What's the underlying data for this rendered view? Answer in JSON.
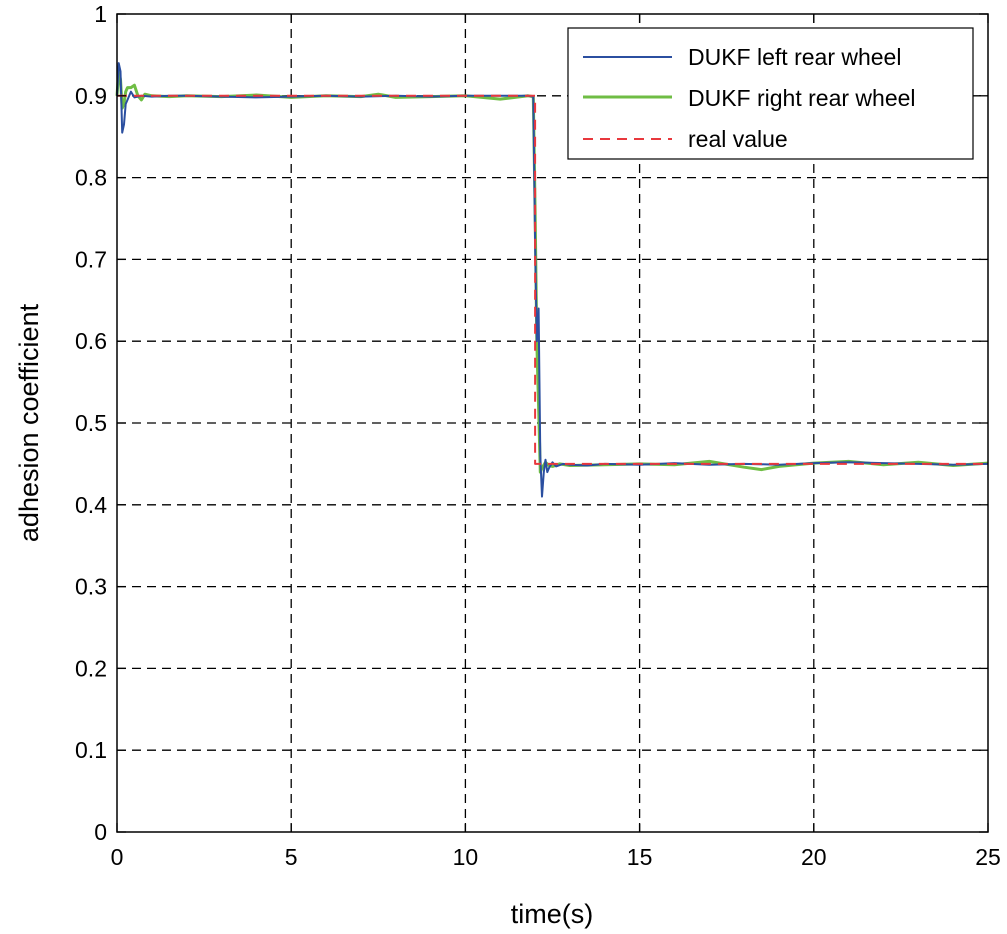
{
  "chart_data": {
    "type": "line",
    "title": "",
    "xlabel": "time(s)",
    "ylabel": "adhesion coefficient",
    "xlim": [
      0,
      25
    ],
    "ylim": [
      0,
      1
    ],
    "xticks": [
      0,
      5,
      10,
      15,
      20,
      25
    ],
    "yticks": [
      0,
      0.1,
      0.2,
      0.3,
      0.4,
      0.5,
      0.6,
      0.7,
      0.8,
      0.9,
      1
    ],
    "xtick_labels": [
      "0",
      "5",
      "10",
      "15",
      "20",
      "25"
    ],
    "ytick_labels": [
      "0",
      "0.1",
      "0.2",
      "0.3",
      "0.4",
      "0.5",
      "0.6",
      "0.7",
      "0.8",
      "0.9",
      "1"
    ],
    "grid": true,
    "legend_position": "top-right",
    "series": [
      {
        "name": "DUKF left rear wheel",
        "color": "#2b4fa0",
        "style": "solid",
        "x": [
          0,
          0.05,
          0.1,
          0.15,
          0.2,
          0.25,
          0.3,
          0.35,
          0.4,
          0.5,
          0.7,
          1,
          1.5,
          2,
          3,
          4,
          5,
          6,
          7,
          8,
          9,
          10,
          11,
          11.8,
          11.95,
          12.0,
          12.05,
          12.1,
          12.15,
          12.2,
          12.25,
          12.3,
          12.35,
          12.4,
          12.5,
          12.6,
          12.8,
          13,
          13.5,
          14,
          15,
          16,
          17,
          18,
          19,
          20,
          21,
          22,
          23,
          24,
          25
        ],
        "y": [
          0.9,
          0.94,
          0.93,
          0.855,
          0.865,
          0.89,
          0.895,
          0.9,
          0.905,
          0.898,
          0.9,
          0.899,
          0.9,
          0.9,
          0.899,
          0.898,
          0.899,
          0.9,
          0.899,
          0.9,
          0.899,
          0.9,
          0.9,
          0.9,
          0.899,
          0.72,
          0.6,
          0.64,
          0.46,
          0.41,
          0.44,
          0.455,
          0.44,
          0.445,
          0.452,
          0.447,
          0.45,
          0.449,
          0.448,
          0.45,
          0.449,
          0.451,
          0.449,
          0.45,
          0.449,
          0.451,
          0.452,
          0.451,
          0.45,
          0.449,
          0.45
        ]
      },
      {
        "name": "DUKF right rear wheel",
        "color": "#6fbd44",
        "style": "solid",
        "x": [
          0,
          0.05,
          0.1,
          0.15,
          0.2,
          0.25,
          0.3,
          0.4,
          0.5,
          0.6,
          0.7,
          0.8,
          1,
          1.5,
          2,
          3,
          4,
          5,
          6,
          7,
          7.5,
          8,
          9,
          10,
          11,
          11.8,
          11.95,
          12.0,
          12.05,
          12.1,
          12.15,
          12.2,
          12.3,
          12.4,
          12.5,
          12.7,
          13,
          14,
          15,
          16,
          17,
          18,
          18.5,
          19,
          20,
          21,
          22,
          23,
          24,
          25
        ],
        "y": [
          0.9,
          0.93,
          0.92,
          0.885,
          0.89,
          0.905,
          0.91,
          0.91,
          0.913,
          0.9,
          0.895,
          0.902,
          0.9,
          0.899,
          0.9,
          0.899,
          0.901,
          0.898,
          0.9,
          0.899,
          0.902,
          0.898,
          0.899,
          0.9,
          0.896,
          0.9,
          0.899,
          0.76,
          0.6,
          0.52,
          0.44,
          0.445,
          0.452,
          0.448,
          0.447,
          0.45,
          0.448,
          0.449,
          0.45,
          0.449,
          0.453,
          0.446,
          0.443,
          0.447,
          0.451,
          0.453,
          0.449,
          0.452,
          0.448,
          0.451
        ]
      },
      {
        "name": "real value",
        "color": "#e8383d",
        "style": "dashed",
        "x": [
          0,
          12,
          12,
          25
        ],
        "y": [
          0.9,
          0.9,
          0.45,
          0.45
        ]
      }
    ]
  }
}
